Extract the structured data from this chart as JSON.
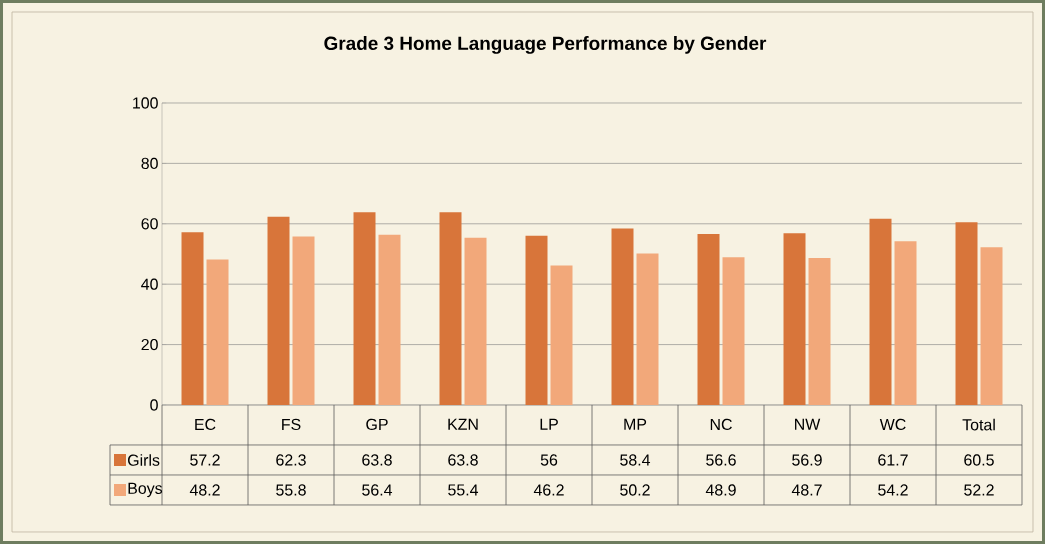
{
  "chart_data": {
    "type": "bar",
    "title": "Grade 3 Home Language Performance by Gender",
    "categories": [
      "EC",
      "FS",
      "GP",
      "KZN",
      "LP",
      "MP",
      "NC",
      "NW",
      "WC",
      "Total"
    ],
    "series": [
      {
        "name": "Girls",
        "color": "#d8753a",
        "values": [
          57.2,
          62.3,
          63.8,
          63.8,
          56,
          58.4,
          56.6,
          56.9,
          61.7,
          60.5
        ]
      },
      {
        "name": "Boys",
        "color": "#f2a87a",
        "values": [
          48.2,
          55.8,
          56.4,
          55.4,
          46.2,
          50.2,
          48.9,
          48.7,
          54.2,
          52.2
        ]
      }
    ],
    "ylim": [
      0,
      100
    ],
    "yticks": [
      0,
      20,
      40,
      60,
      80,
      100
    ],
    "grid": "y",
    "legend": "bottom",
    "data_labels": true
  }
}
